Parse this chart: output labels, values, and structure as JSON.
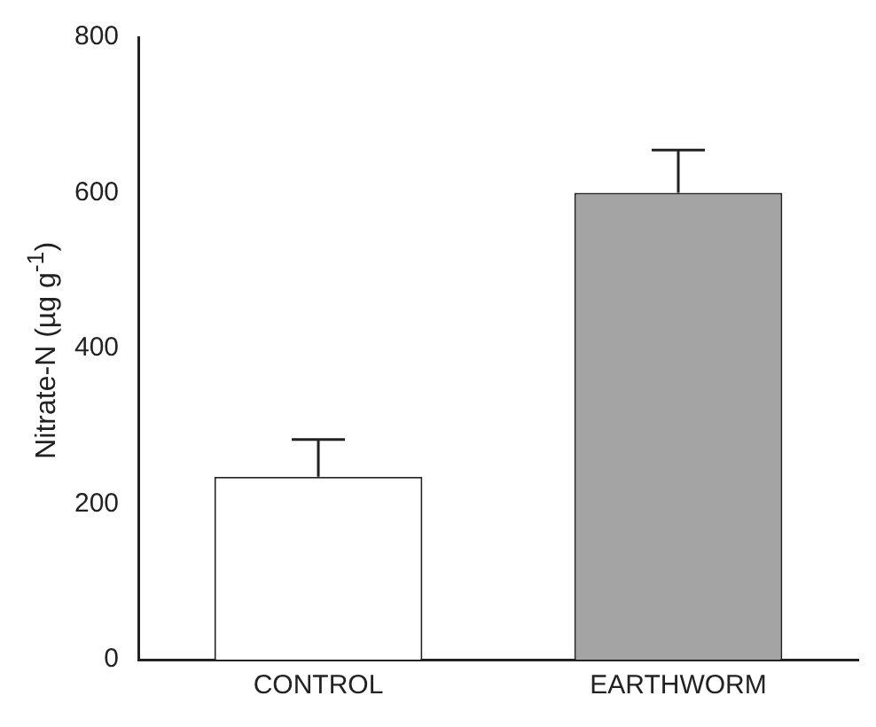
{
  "chart_data": {
    "type": "bar",
    "ylabel": "Nitrate-N (µg g$^{-1}$)",
    "categories": [
      "CONTROL",
      "EARTHWORM"
    ],
    "values": [
      235,
      600
    ],
    "colors": [
      "#ffffff",
      "#a4a4a4"
    ],
    "errors": [
      [
        235,
        283
      ],
      [
        600,
        655
      ]
    ],
    "ylim": [
      0,
      800
    ],
    "yticks": [
      0,
      200,
      400,
      600,
      800
    ],
    "grid": false,
    "legend": false
  }
}
